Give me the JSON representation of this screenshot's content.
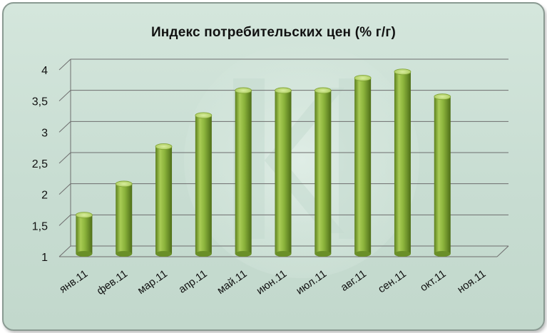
{
  "chart_data": {
    "type": "bar",
    "title": "Индекс потребительских цен (% г/г)",
    "categories": [
      "янв.11",
      "фев.11",
      "мар.11",
      "апр.11",
      "май.11",
      "июн.11",
      "июл.11",
      "авг.11",
      "сен.11",
      "окт.11",
      "ноя.11"
    ],
    "values": [
      1.6,
      2.1,
      2.7,
      3.2,
      3.6,
      3.6,
      3.6,
      3.8,
      3.9,
      3.5,
      null
    ],
    "y_ticks": [
      "1",
      "1,5",
      "2",
      "2,5",
      "3",
      "3,5",
      "4"
    ],
    "ylim": [
      1,
      4
    ],
    "grid": true,
    "legend": "none",
    "bar_color": "#8cb43c",
    "bar_top_color": "#c6e07a",
    "gridline_color": "#6e6e6e"
  }
}
